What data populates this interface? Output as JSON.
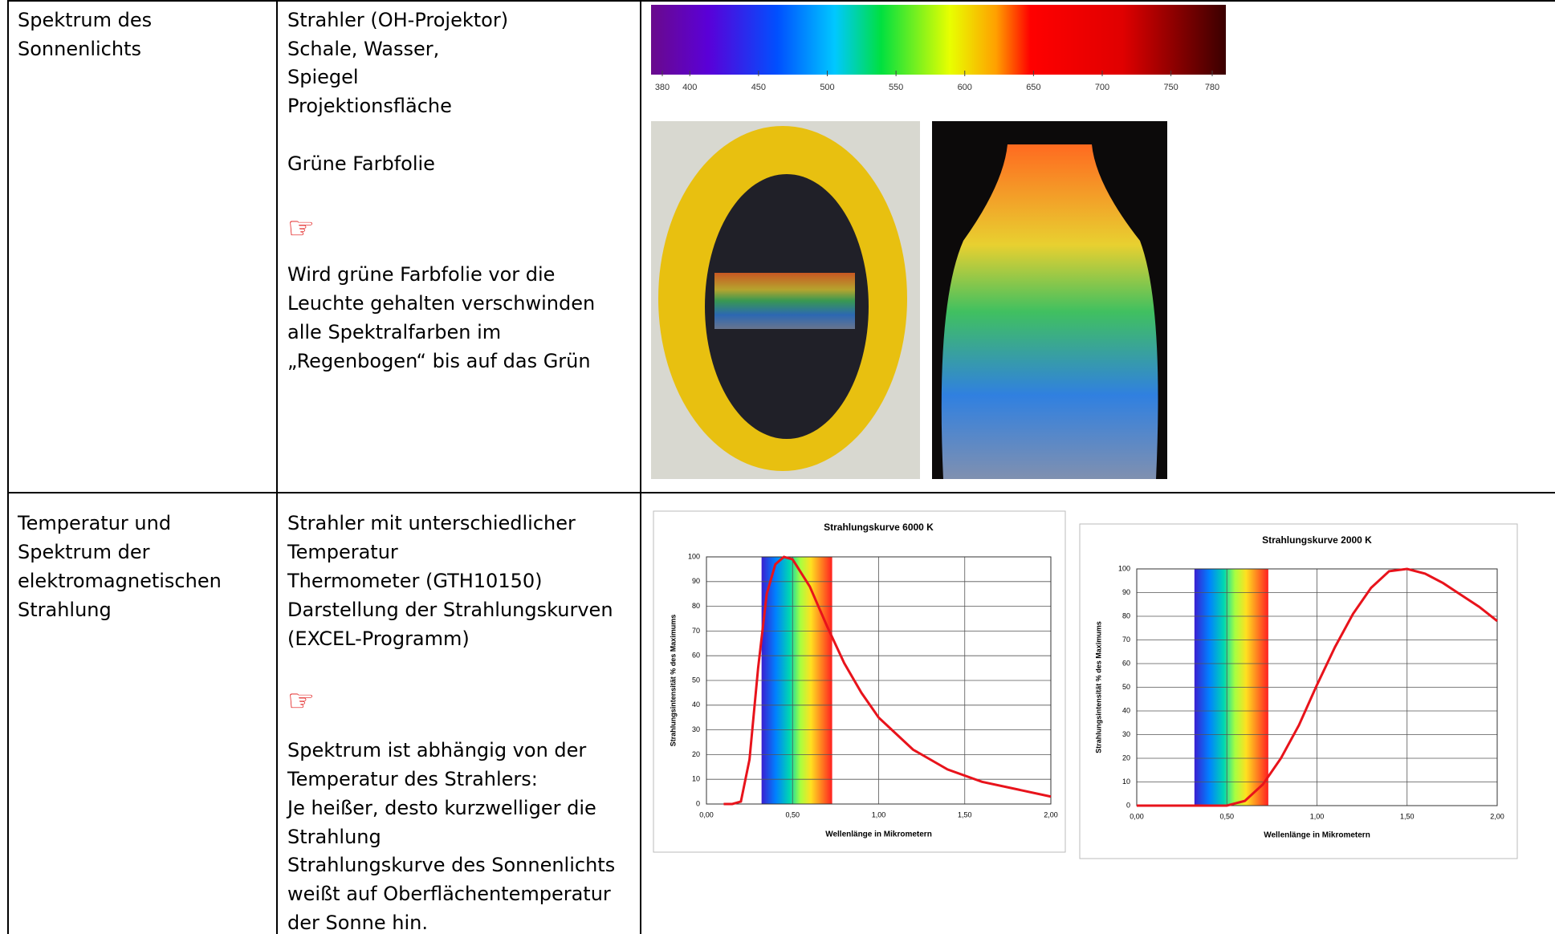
{
  "table": {
    "rows": [
      {
        "cells": [
          {
            "lines": [
              "Spektrum des",
              "Sonnenlichts"
            ]
          },
          {
            "lines": [
              "Strahler (OH-Projektor)",
              "Schale, Wasser,",
              "Spiegel",
              "Projektionsfläche",
              "Grüne Farbfolie"
            ],
            "note_icon": "☞",
            "note": [
              "Wird grüne Farbfolie vor die",
              "Leuchte gehalten verschwinden",
              "alle Spektralfarben im",
              "„Regenbogen“ bis auf das Grün"
            ]
          }
        ]
      },
      {
        "cells": [
          {
            "lines": [
              "Temperatur  und",
              "Spektrum der",
              "elektromagnetischen",
              "Strahlung"
            ]
          },
          {
            "lines": [
              "Strahler mit unterschiedlicher",
              "Temperatur",
              "Thermometer (GTH10150)",
              "Darstellung der Strahlungskurven",
              "(EXCEL-Programm)"
            ],
            "note_icon": "☞",
            "note": [
              "Spektrum ist abhängig von der",
              "Temperatur des Strahlers:",
              "Je heißer, desto kurzwelliger die",
              "Strahlung",
              "Strahlungskurve des Sonnenlichts",
              "weißt auf Oberflächentemperatur",
              "der Sonne hin."
            ]
          }
        ]
      }
    ]
  },
  "spectrum_scale": {
    "xlim": [
      380,
      780
    ],
    "xticks": [
      380,
      400,
      450,
      500,
      550,
      600,
      650,
      700,
      750,
      780
    ]
  },
  "charts": [
    {
      "type": "line",
      "title": "Strahlungskurve 6000 K",
      "x_label": "Wellenlänge in Mikrometern",
      "y_label": "Strahlungsintensität % des Maximums",
      "xlim": [
        0,
        2
      ],
      "ylim": [
        0,
        100
      ],
      "xticks": [
        {
          "value": 0,
          "label": "0,00"
        },
        {
          "value": 0.5,
          "label": "0,50"
        },
        {
          "value": 1,
          "label": "1,00"
        },
        {
          "value": 1.5,
          "label": "1,50"
        },
        {
          "value": 2,
          "label": "2,00"
        }
      ],
      "yticks": [
        0,
        10,
        20,
        30,
        40,
        50,
        60,
        70,
        80,
        90,
        100
      ],
      "grid": true,
      "spectrum_band": [
        0.32,
        0.73
      ],
      "x": [
        0.1,
        0.15,
        0.2,
        0.25,
        0.3,
        0.35,
        0.4,
        0.45,
        0.5,
        0.6,
        0.7,
        0.8,
        0.9,
        1.0,
        1.2,
        1.4,
        1.6,
        1.8,
        2.0
      ],
      "series": [
        {
          "color": "#e8131b",
          "values": [
            0,
            0,
            1,
            18,
            55,
            85,
            97,
            100,
            99,
            88,
            72,
            57,
            45,
            35,
            22,
            14,
            9,
            6,
            3
          ]
        }
      ]
    },
    {
      "type": "line",
      "title": "Strahlungskurve 2000 K",
      "x_label": "Wellenlänge in Mikrometern",
      "y_label": "Strahlungsintensität % des Maximums",
      "xlim": [
        0,
        2
      ],
      "ylim": [
        0,
        100
      ],
      "xticks": [
        {
          "value": 0,
          "label": "0,00"
        },
        {
          "value": 0.5,
          "label": "0,50"
        },
        {
          "value": 1,
          "label": "1,00"
        },
        {
          "value": 1.5,
          "label": "1,50"
        },
        {
          "value": 2,
          "label": "2,00"
        }
      ],
      "yticks": [
        0,
        10,
        20,
        30,
        40,
        50,
        60,
        70,
        80,
        90,
        100
      ],
      "grid": true,
      "spectrum_band": [
        0.32,
        0.73
      ],
      "x": [
        0.0,
        0.3,
        0.4,
        0.5,
        0.6,
        0.7,
        0.8,
        0.9,
        1.0,
        1.1,
        1.2,
        1.3,
        1.4,
        1.5,
        1.6,
        1.7,
        1.8,
        1.9,
        2.0
      ],
      "series": [
        {
          "color": "#e8131b",
          "values": [
            0,
            0,
            0,
            0,
            2,
            9,
            20,
            34,
            51,
            67,
            81,
            92,
            99,
            100,
            98,
            94,
            89,
            84,
            78
          ]
        }
      ]
    }
  ]
}
